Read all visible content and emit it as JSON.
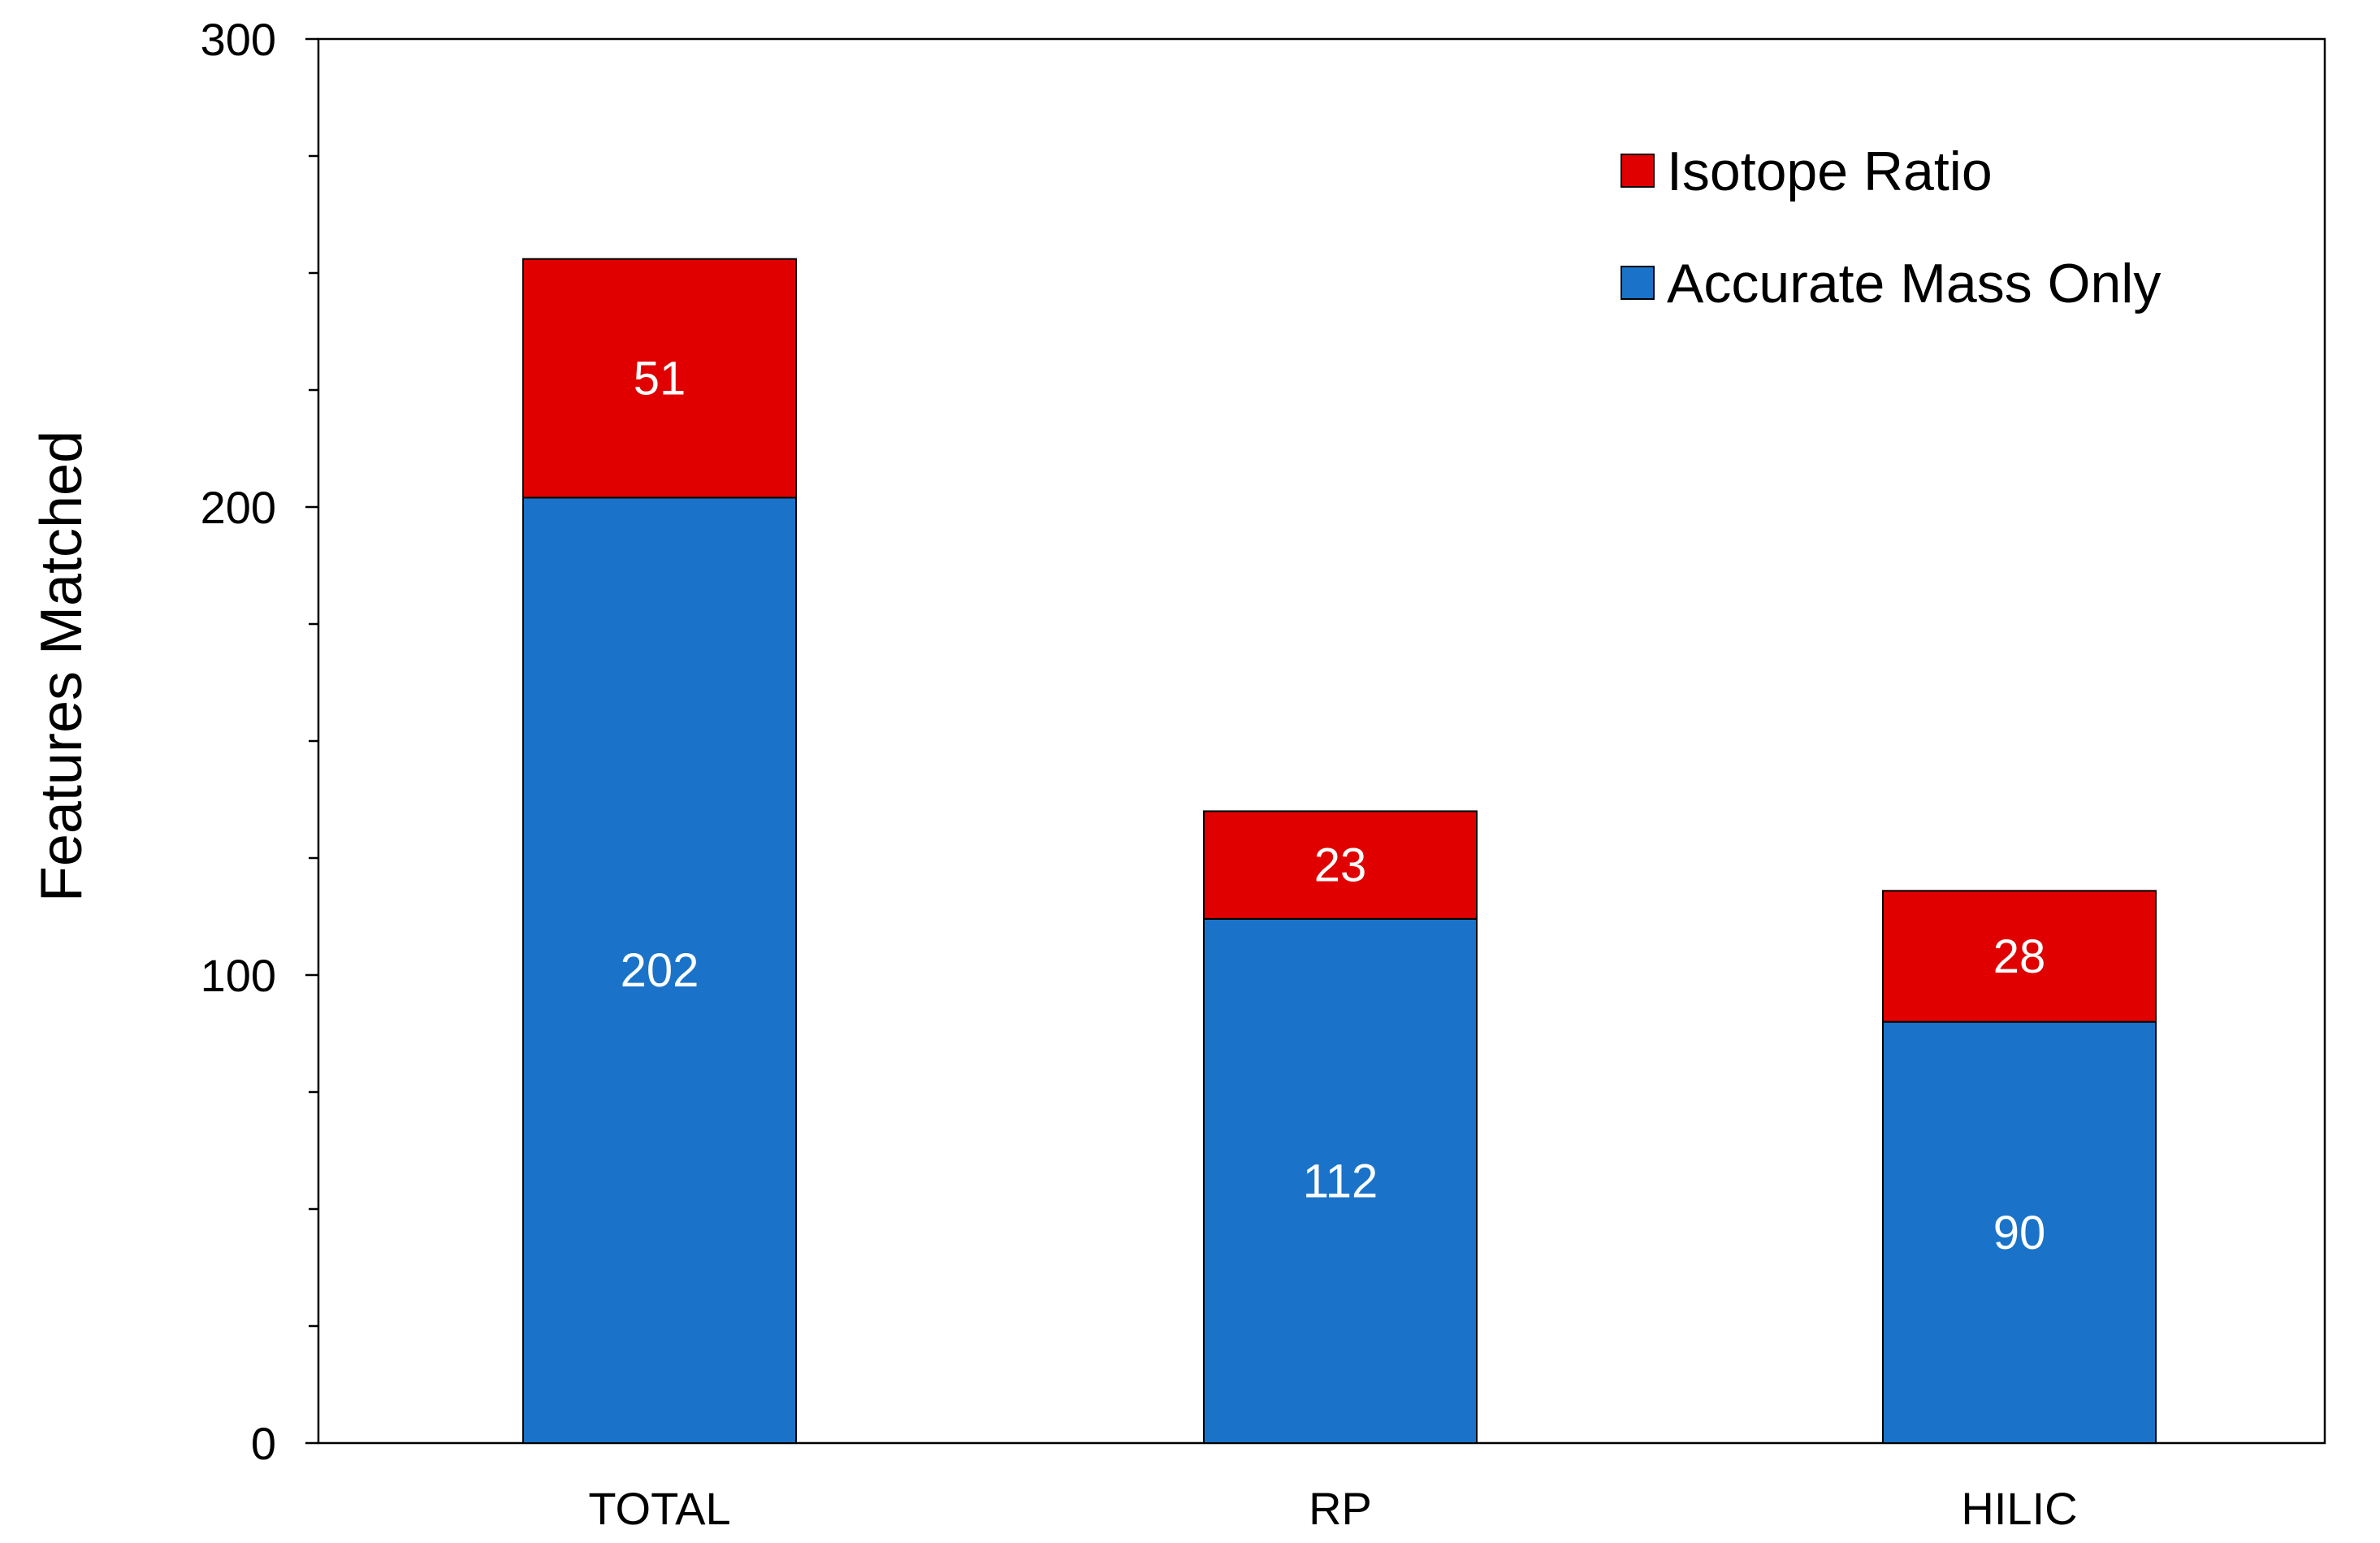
{
  "chart_data": {
    "type": "bar",
    "stacked": true,
    "categories": [
      "TOTAL",
      "RP",
      "HILIC"
    ],
    "series": [
      {
        "name": "Accurate Mass Only",
        "values": [
          202,
          112,
          90
        ],
        "color": "#1a73c9"
      },
      {
        "name": "Isotope Ratio",
        "values": [
          51,
          23,
          28
        ],
        "color": "#e00000"
      }
    ],
    "xlabel": "",
    "ylabel": "Features Matched",
    "ylim": [
      0,
      300
    ],
    "yticks": [
      0,
      100,
      200,
      300
    ],
    "y_minor_step": 25,
    "grid": false,
    "legend_position": "top-right",
    "legend_order": [
      "Isotope Ratio",
      "Accurate Mass Only"
    ]
  }
}
